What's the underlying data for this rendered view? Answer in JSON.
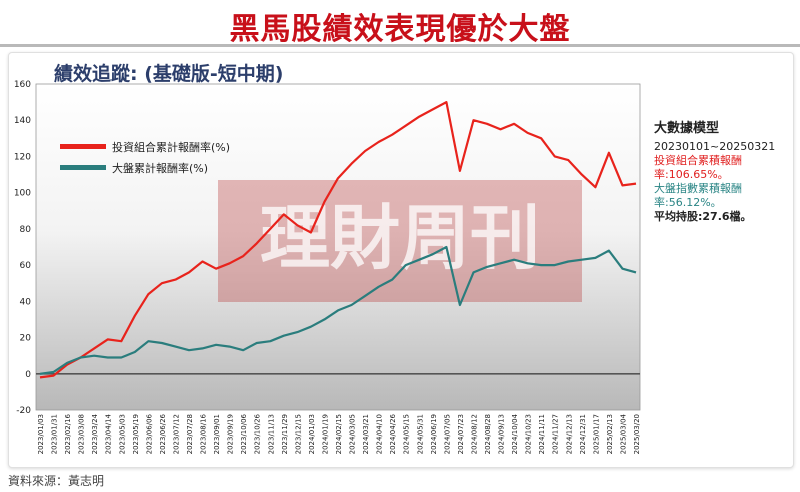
{
  "headline": "黑馬股績效表現優於大盤",
  "subtitle": "績效追蹤: (基礎版-短中期)",
  "watermark": "理財周刊",
  "model_box": {
    "title": "大數據模型",
    "period": "20230101~20250321",
    "portfolio_line": "投資組合累積報酬率:106.65%。",
    "market_line": "大盤指數累積報酬率:56.12%。",
    "holdings_line": "平均持股:27.6檔。"
  },
  "source": "資料來源：黃志明",
  "colors": {
    "portfolio": "#e8231c",
    "market": "#2a7d7d",
    "headline": "#c8101a"
  },
  "chart_data": {
    "type": "line",
    "ylim": [
      -20,
      160
    ],
    "yticks": [
      -20,
      0,
      20,
      40,
      60,
      80,
      100,
      120,
      140,
      160
    ],
    "legend_position": "top-left",
    "x_tick_labels": [
      "2023/01/03",
      "2023/01/31",
      "2023/02/16",
      "2023/03/08",
      "2023/03/24",
      "2023/04/14",
      "2023/05/03",
      "2023/05/19",
      "2023/06/06",
      "2023/06/26",
      "2023/07/12",
      "2023/07/28",
      "2023/08/16",
      "2023/09/01",
      "2023/09/19",
      "2023/10/06",
      "2023/10/26",
      "2023/11/13",
      "2023/11/29",
      "2023/12/15",
      "2024/01/03",
      "2024/01/19",
      "2024/02/15",
      "2024/03/05",
      "2024/03/21",
      "2024/04/10",
      "2024/04/26",
      "2024/05/15",
      "2024/05/31",
      "2024/06/19",
      "2024/07/05",
      "2024/07/23",
      "2024/08/12",
      "2024/08/28",
      "2024/09/13",
      "2024/10/04",
      "2024/10/23",
      "2024/11/11",
      "2024/11/27",
      "2024/12/13",
      "2024/12/31",
      "2025/01/17",
      "2025/02/13",
      "2025/03/04",
      "2025/03/20"
    ],
    "series": [
      {
        "name": "投資組合累計報酬率(%)",
        "values": [
          -2,
          -1,
          5,
          9,
          14,
          19,
          18,
          32,
          44,
          50,
          52,
          56,
          62,
          58,
          61,
          65,
          72,
          80,
          88,
          82,
          78,
          95,
          108,
          116,
          123,
          128,
          132,
          137,
          142,
          146,
          150,
          112,
          140,
          138,
          135,
          138,
          133,
          130,
          120,
          118,
          110,
          103,
          122,
          104,
          105
        ]
      },
      {
        "name": "大盤累計報酬率(%)",
        "values": [
          0,
          1,
          6,
          9,
          10,
          9,
          9,
          12,
          18,
          17,
          15,
          13,
          14,
          16,
          15,
          13,
          17,
          18,
          21,
          23,
          26,
          30,
          35,
          38,
          43,
          48,
          52,
          60,
          63,
          66,
          70,
          38,
          56,
          59,
          61,
          63,
          61,
          60,
          60,
          62,
          63,
          64,
          68,
          58,
          56
        ]
      }
    ]
  }
}
